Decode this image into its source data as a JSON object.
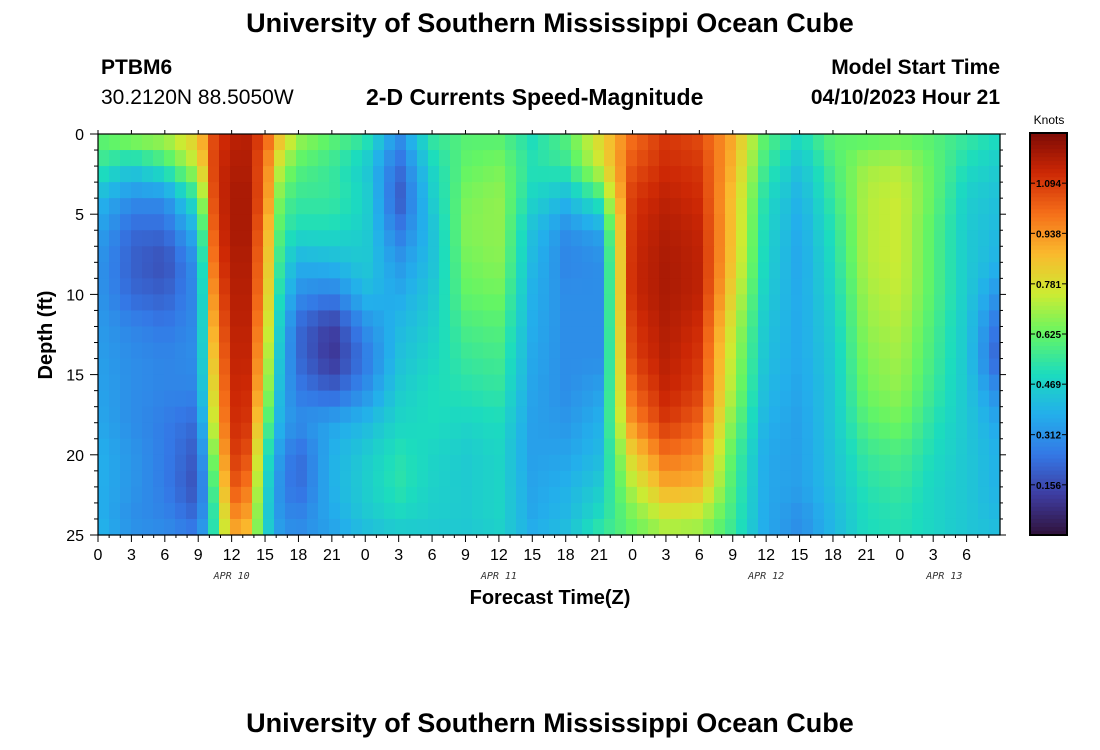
{
  "header": {
    "title": "University of Southern Mississippi Ocean Cube",
    "station_id": "PTBM6",
    "coordinates": "30.2120N  88.5050W",
    "chart_title": "2-D Currents Speed-Magnitude",
    "model_start_label": "Model Start Time",
    "model_start_value": "04/10/2023 Hour 21"
  },
  "footer": {
    "title": "University of Southern Mississippi Ocean Cube"
  },
  "chart_data": {
    "type": "heatmap",
    "title": "2-D Currents Speed-Magnitude",
    "xlabel": "Forecast Time(Z)",
    "ylabel": "Depth (ft)",
    "x_hours": [
      0,
      81
    ],
    "y_depth_ft": [
      0,
      25
    ],
    "y_ticks": [
      0,
      5,
      10,
      15,
      20,
      25
    ],
    "x_tick_labels": [
      "0",
      "3",
      "6",
      "9",
      "12",
      "15",
      "18",
      "21",
      "0",
      "3",
      "6",
      "9",
      "12",
      "15",
      "18",
      "21",
      "0",
      "3",
      "6",
      "9",
      "12",
      "15",
      "18",
      "21",
      "0",
      "3",
      "6"
    ],
    "date_labels": [
      {
        "label": "APR 10",
        "hour": 12
      },
      {
        "label": "APR 11",
        "hour": 36
      },
      {
        "label": "APR 12",
        "hour": 60
      },
      {
        "label": "APR 13",
        "hour": 76
      }
    ],
    "colorbar": {
      "unit": "Knots",
      "min": 0.0,
      "max": 1.25,
      "tick_labels": [
        "1.094",
        "0.938",
        "0.781",
        "0.625",
        "0.469",
        "0.312",
        "0.156"
      ]
    },
    "time_hours": [
      0,
      3,
      6,
      9,
      10.5,
      12,
      13.5,
      15,
      16.5,
      18,
      21,
      24,
      27,
      30,
      33,
      36,
      39,
      42,
      45,
      48,
      51,
      54,
      57,
      60,
      63,
      66,
      69,
      72,
      75,
      78,
      81
    ],
    "depth_rows_ft": [
      0,
      2,
      4,
      6,
      8,
      10,
      12,
      14,
      16,
      18,
      20,
      22,
      24,
      25
    ],
    "speed_knots": [
      [
        0.62,
        0.7,
        0.72,
        0.85,
        1.08,
        1.15,
        1.16,
        1.05,
        0.85,
        0.7,
        0.62,
        0.55,
        0.3,
        0.55,
        0.6,
        0.6,
        0.5,
        0.6,
        0.8,
        1.0,
        1.1,
        1.06,
        0.9,
        0.6,
        0.5,
        0.62,
        0.6,
        0.62,
        0.6,
        0.55,
        0.5
      ],
      [
        0.55,
        0.45,
        0.55,
        0.75,
        1.1,
        1.17,
        1.17,
        1.0,
        0.7,
        0.6,
        0.55,
        0.45,
        0.22,
        0.48,
        0.62,
        0.65,
        0.52,
        0.55,
        0.75,
        1.05,
        1.12,
        1.1,
        0.88,
        0.55,
        0.42,
        0.58,
        0.7,
        0.72,
        0.62,
        0.5,
        0.45
      ],
      [
        0.4,
        0.3,
        0.3,
        0.55,
        1.1,
        1.18,
        1.18,
        1.0,
        0.6,
        0.55,
        0.55,
        0.48,
        0.18,
        0.45,
        0.65,
        0.68,
        0.48,
        0.4,
        0.55,
        1.1,
        1.15,
        1.12,
        0.85,
        0.5,
        0.38,
        0.55,
        0.72,
        0.75,
        0.62,
        0.46,
        0.42
      ],
      [
        0.35,
        0.22,
        0.22,
        0.4,
        1.08,
        1.18,
        1.18,
        0.95,
        0.55,
        0.5,
        0.5,
        0.46,
        0.25,
        0.42,
        0.66,
        0.68,
        0.42,
        0.3,
        0.35,
        1.12,
        1.17,
        1.14,
        0.85,
        0.48,
        0.36,
        0.52,
        0.72,
        0.75,
        0.6,
        0.45,
        0.4
      ],
      [
        0.32,
        0.2,
        0.16,
        0.32,
        1.05,
        1.17,
        1.17,
        0.92,
        0.5,
        0.38,
        0.4,
        0.45,
        0.32,
        0.42,
        0.64,
        0.67,
        0.4,
        0.28,
        0.3,
        1.13,
        1.18,
        1.15,
        0.84,
        0.47,
        0.35,
        0.5,
        0.72,
        0.75,
        0.6,
        0.45,
        0.38
      ],
      [
        0.32,
        0.22,
        0.2,
        0.3,
        1.0,
        1.16,
        1.16,
        0.9,
        0.45,
        0.3,
        0.26,
        0.4,
        0.36,
        0.44,
        0.62,
        0.64,
        0.38,
        0.3,
        0.3,
        1.13,
        1.18,
        1.15,
        0.8,
        0.45,
        0.36,
        0.48,
        0.7,
        0.74,
        0.6,
        0.45,
        0.3
      ],
      [
        0.33,
        0.28,
        0.25,
        0.3,
        0.95,
        1.15,
        1.15,
        0.85,
        0.4,
        0.22,
        0.12,
        0.3,
        0.4,
        0.46,
        0.58,
        0.6,
        0.37,
        0.3,
        0.3,
        1.1,
        1.17,
        1.12,
        0.75,
        0.43,
        0.36,
        0.46,
        0.68,
        0.72,
        0.58,
        0.44,
        0.22
      ],
      [
        0.34,
        0.3,
        0.28,
        0.3,
        0.9,
        1.14,
        1.14,
        0.8,
        0.38,
        0.22,
        0.1,
        0.25,
        0.42,
        0.48,
        0.55,
        0.57,
        0.36,
        0.3,
        0.3,
        1.08,
        1.16,
        1.1,
        0.72,
        0.42,
        0.36,
        0.45,
        0.66,
        0.7,
        0.57,
        0.44,
        0.18
      ],
      [
        0.35,
        0.3,
        0.28,
        0.28,
        0.85,
        1.13,
        1.12,
        0.75,
        0.36,
        0.26,
        0.2,
        0.3,
        0.45,
        0.5,
        0.52,
        0.54,
        0.35,
        0.3,
        0.34,
        1.02,
        1.14,
        1.08,
        0.7,
        0.4,
        0.35,
        0.44,
        0.64,
        0.68,
        0.55,
        0.44,
        0.28
      ],
      [
        0.36,
        0.3,
        0.26,
        0.22,
        0.8,
        1.12,
        1.1,
        0.65,
        0.35,
        0.3,
        0.35,
        0.4,
        0.48,
        0.5,
        0.48,
        0.5,
        0.34,
        0.32,
        0.38,
        0.95,
        1.1,
        1.02,
        0.65,
        0.38,
        0.34,
        0.44,
        0.6,
        0.64,
        0.52,
        0.44,
        0.35
      ],
      [
        0.38,
        0.32,
        0.26,
        0.18,
        0.7,
        1.1,
        1.05,
        0.55,
        0.3,
        0.22,
        0.38,
        0.45,
        0.52,
        0.48,
        0.45,
        0.48,
        0.34,
        0.35,
        0.4,
        0.82,
        1.0,
        0.95,
        0.6,
        0.36,
        0.34,
        0.43,
        0.55,
        0.58,
        0.5,
        0.44,
        0.38
      ],
      [
        0.38,
        0.32,
        0.26,
        0.16,
        0.62,
        1.05,
        0.98,
        0.5,
        0.28,
        0.22,
        0.38,
        0.46,
        0.53,
        0.47,
        0.45,
        0.48,
        0.35,
        0.38,
        0.45,
        0.72,
        0.9,
        0.88,
        0.58,
        0.36,
        0.34,
        0.42,
        0.52,
        0.55,
        0.48,
        0.44,
        0.38
      ],
      [
        0.38,
        0.3,
        0.28,
        0.22,
        0.55,
        0.95,
        0.9,
        0.48,
        0.3,
        0.28,
        0.36,
        0.44,
        0.48,
        0.46,
        0.45,
        0.48,
        0.36,
        0.4,
        0.5,
        0.64,
        0.74,
        0.72,
        0.56,
        0.36,
        0.3,
        0.4,
        0.5,
        0.52,
        0.48,
        0.44,
        0.4
      ],
      [
        0.4,
        0.32,
        0.3,
        0.26,
        0.55,
        0.9,
        0.85,
        0.5,
        0.32,
        0.3,
        0.34,
        0.4,
        0.44,
        0.44,
        0.44,
        0.46,
        0.38,
        0.42,
        0.55,
        0.62,
        0.7,
        0.68,
        0.55,
        0.36,
        0.3,
        0.4,
        0.5,
        0.52,
        0.48,
        0.44,
        0.42
      ]
    ]
  }
}
